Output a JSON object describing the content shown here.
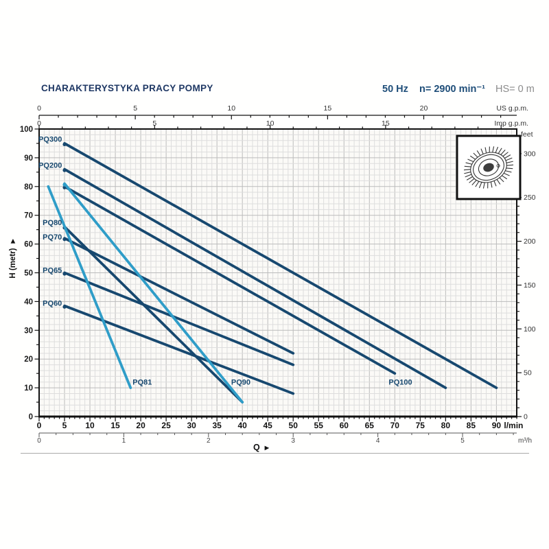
{
  "header": {
    "title": "CHARAKTERYSTYKA PRACY POMPY",
    "frequency": "50 Hz",
    "speed": "n= 2900 min⁻¹",
    "hs": "HS= 0 m"
  },
  "colors": {
    "title": "#1F3864",
    "header_blue": "#1F4E79",
    "header_gray": "#8C8C8C",
    "dark_line": "#17486F",
    "light_line": "#2F9DC8",
    "label": "#17486F",
    "plot_bg": "#FBFAF7",
    "grid_minor": "#DDDDDD",
    "grid_major": "#BBBBBB",
    "axis": "#111111",
    "tick_text": "#333333"
  },
  "chart_data": {
    "type": "line",
    "xlabel": "Q",
    "ylabel": "H (metr)",
    "arrow": "▶",
    "x_axis_lmin": {
      "unit": "l/min",
      "min": 0,
      "max": 94,
      "ticks": [
        0,
        5,
        10,
        15,
        20,
        25,
        30,
        35,
        40,
        45,
        50,
        55,
        60,
        65,
        70,
        75,
        80,
        85,
        90
      ],
      "minor_step": 1
    },
    "x_axis_m3h": {
      "unit": "m³/h",
      "lmin_per_unit": 16.6667,
      "ticks": [
        0,
        1,
        2,
        3,
        4,
        5
      ],
      "minor_step": 0.2
    },
    "x_axis_us": {
      "unit": "US g.p.m.",
      "lmin_per_unit": 3.785,
      "ticks": [
        0,
        5,
        10,
        15,
        20
      ],
      "minor_step": 1
    },
    "x_axis_imp": {
      "unit": "Imp g.p.m.",
      "lmin_per_unit": 4.546,
      "ticks": [
        0,
        5,
        10,
        15
      ],
      "minor_step": 1
    },
    "y_axis_m": {
      "unit": "metr",
      "min": 0,
      "max": 100,
      "ticks": [
        0,
        10,
        20,
        30,
        40,
        50,
        60,
        70,
        80,
        90,
        100
      ],
      "minor_step": 2
    },
    "y_axis_feet": {
      "unit": "feet",
      "m_per_foot": 0.3048,
      "ticks": [
        0,
        50,
        100,
        150,
        200,
        250,
        300
      ],
      "minor_step": 10
    },
    "series": [
      {
        "name": "PQ300",
        "shade": "dark",
        "points": [
          [
            5,
            95
          ],
          [
            90,
            10
          ]
        ],
        "dot": true,
        "label": {
          "x": 4.5,
          "y": 96.5,
          "anchor": "end"
        }
      },
      {
        "name": "PQ200",
        "shade": "dark",
        "points": [
          [
            5,
            86
          ],
          [
            80,
            10
          ]
        ],
        "dot": true,
        "label": {
          "x": 4.5,
          "y": 87.5,
          "anchor": "end"
        }
      },
      {
        "name": "PQ100",
        "shade": "dark",
        "points": [
          [
            5,
            80
          ],
          [
            70,
            15
          ]
        ],
        "dot": true,
        "label": {
          "x": 68.8,
          "y": 12,
          "anchor": "start"
        }
      },
      {
        "name": "PQ80",
        "shade": "dark",
        "points": [
          [
            5,
            66
          ],
          [
            40,
            5
          ]
        ],
        "dot": true,
        "label": {
          "x": 4.5,
          "y": 67.5,
          "anchor": "end"
        }
      },
      {
        "name": "PQ70",
        "shade": "dark",
        "points": [
          [
            5,
            62
          ],
          [
            50,
            22
          ]
        ],
        "dot": true,
        "label": {
          "x": 4.5,
          "y": 62.5,
          "anchor": "end"
        }
      },
      {
        "name": "PQ65",
        "shade": "dark",
        "points": [
          [
            5,
            50
          ],
          [
            50,
            18
          ]
        ],
        "dot": true,
        "label": {
          "x": 4.5,
          "y": 51,
          "anchor": "end"
        }
      },
      {
        "name": "PQ60",
        "shade": "dark",
        "points": [
          [
            5,
            38.5
          ],
          [
            50,
            8
          ]
        ],
        "dot": true,
        "label": {
          "x": 4.5,
          "y": 39.5,
          "anchor": "end"
        }
      },
      {
        "name": "PQ81",
        "shade": "light",
        "points": [
          [
            1.8,
            80
          ],
          [
            18,
            10
          ]
        ],
        "dot": false,
        "label": {
          "x": 18.4,
          "y": 12,
          "anchor": "start"
        }
      },
      {
        "name": "PQ90",
        "shade": "light",
        "points": [
          [
            5,
            81
          ],
          [
            40,
            5
          ]
        ],
        "dot": true,
        "label": {
          "x": 37.8,
          "y": 12,
          "anchor": "start"
        }
      }
    ]
  }
}
